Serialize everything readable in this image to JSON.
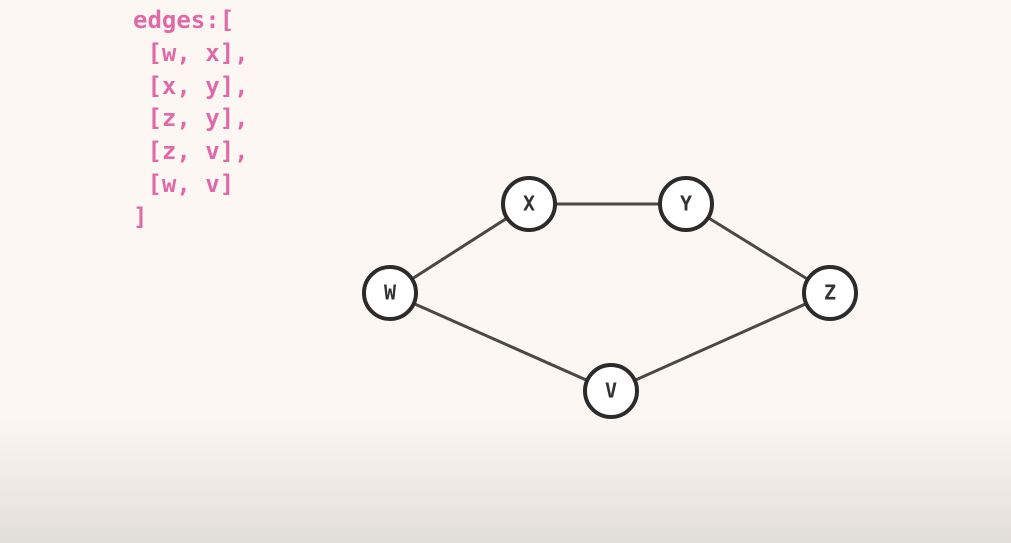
{
  "colors": {
    "background": "#fdf7f3",
    "code_text": "#e06aa9",
    "node_stroke": "#2b2b2b",
    "node_fill": "#ffffff",
    "edge": "#4a4847",
    "node_label": "#333333"
  },
  "code": {
    "lines": [
      "edges:[",
      " [w, x],",
      " [x, y],",
      " [z, y],",
      " [z, v],",
      " [w, v]",
      "]"
    ]
  },
  "graph": {
    "nodes": [
      {
        "id": "w",
        "label": "W"
      },
      {
        "id": "x",
        "label": "X"
      },
      {
        "id": "y",
        "label": "Y"
      },
      {
        "id": "z",
        "label": "Z"
      },
      {
        "id": "v",
        "label": "V"
      }
    ],
    "edges": [
      [
        "w",
        "x"
      ],
      [
        "x",
        "y"
      ],
      [
        "y",
        "z"
      ],
      [
        "z",
        "v"
      ],
      [
        "w",
        "v"
      ]
    ]
  }
}
